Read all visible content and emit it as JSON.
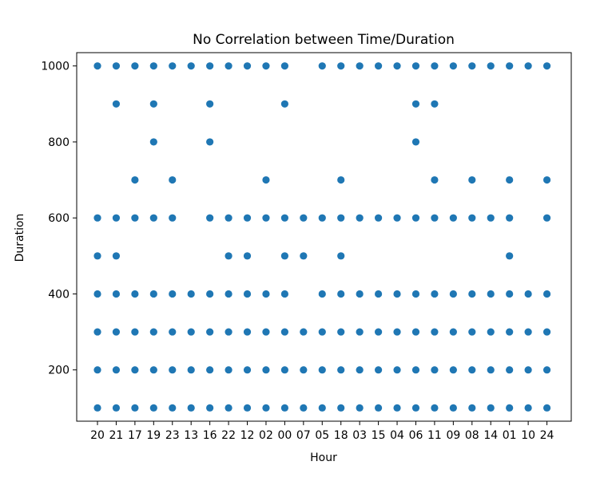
{
  "chart_data": {
    "type": "scatter",
    "title": "No Correlation between Time/Duration",
    "xlabel": "Hour",
    "ylabel": "Duration",
    "categories": [
      "20",
      "21",
      "17",
      "19",
      "23",
      "13",
      "16",
      "22",
      "12",
      "02",
      "00",
      "07",
      "05",
      "18",
      "03",
      "15",
      "04",
      "06",
      "11",
      "09",
      "08",
      "14",
      "01",
      "10",
      "24"
    ],
    "yticks": [
      200,
      400,
      600,
      800,
      1000
    ],
    "ylim": [
      65,
      1035
    ],
    "grid": false,
    "legend": "none",
    "marker_color": "#1f77b4",
    "series": [
      {
        "points": [
          {
            "x": "20",
            "y": [
              100,
              200,
              300,
              400,
              500,
              600,
              1000
            ]
          },
          {
            "x": "21",
            "y": [
              100,
              200,
              300,
              400,
              500,
              600,
              900,
              1000
            ]
          },
          {
            "x": "17",
            "y": [
              100,
              200,
              300,
              400,
              600,
              700,
              1000
            ]
          },
          {
            "x": "19",
            "y": [
              100,
              200,
              300,
              400,
              600,
              800,
              900,
              1000
            ]
          },
          {
            "x": "23",
            "y": [
              100,
              200,
              300,
              400,
              600,
              700,
              1000
            ]
          },
          {
            "x": "13",
            "y": [
              100,
              200,
              300,
              400,
              1000
            ]
          },
          {
            "x": "16",
            "y": [
              100,
              200,
              300,
              400,
              600,
              800,
              900,
              1000
            ]
          },
          {
            "x": "22",
            "y": [
              100,
              200,
              300,
              400,
              500,
              600,
              1000
            ]
          },
          {
            "x": "12",
            "y": [
              100,
              200,
              300,
              400,
              500,
              600,
              1000
            ]
          },
          {
            "x": "02",
            "y": [
              100,
              200,
              300,
              400,
              600,
              700,
              1000
            ]
          },
          {
            "x": "00",
            "y": [
              100,
              200,
              300,
              400,
              500,
              600,
              900,
              1000
            ]
          },
          {
            "x": "07",
            "y": [
              100,
              200,
              300,
              500,
              600
            ]
          },
          {
            "x": "05",
            "y": [
              100,
              200,
              300,
              400,
              600,
              1000
            ]
          },
          {
            "x": "18",
            "y": [
              100,
              200,
              300,
              400,
              500,
              600,
              700,
              1000
            ]
          },
          {
            "x": "03",
            "y": [
              100,
              200,
              300,
              400,
              600,
              1000
            ]
          },
          {
            "x": "15",
            "y": [
              100,
              200,
              300,
              400,
              600,
              1000
            ]
          },
          {
            "x": "04",
            "y": [
              100,
              200,
              300,
              400,
              600,
              1000
            ]
          },
          {
            "x": "06",
            "y": [
              100,
              200,
              300,
              400,
              600,
              800,
              900,
              1000
            ]
          },
          {
            "x": "11",
            "y": [
              100,
              200,
              300,
              400,
              600,
              700,
              900,
              1000
            ]
          },
          {
            "x": "09",
            "y": [
              100,
              200,
              300,
              400,
              600,
              1000
            ]
          },
          {
            "x": "08",
            "y": [
              100,
              200,
              300,
              400,
              600,
              700,
              1000
            ]
          },
          {
            "x": "14",
            "y": [
              100,
              200,
              300,
              400,
              600,
              1000
            ]
          },
          {
            "x": "01",
            "y": [
              100,
              200,
              300,
              400,
              500,
              600,
              700,
              1000
            ]
          },
          {
            "x": "10",
            "y": [
              100,
              200,
              300,
              400,
              1000
            ]
          },
          {
            "x": "24",
            "y": [
              100,
              200,
              300,
              400,
              600,
              700,
              1000
            ]
          }
        ]
      }
    ]
  }
}
